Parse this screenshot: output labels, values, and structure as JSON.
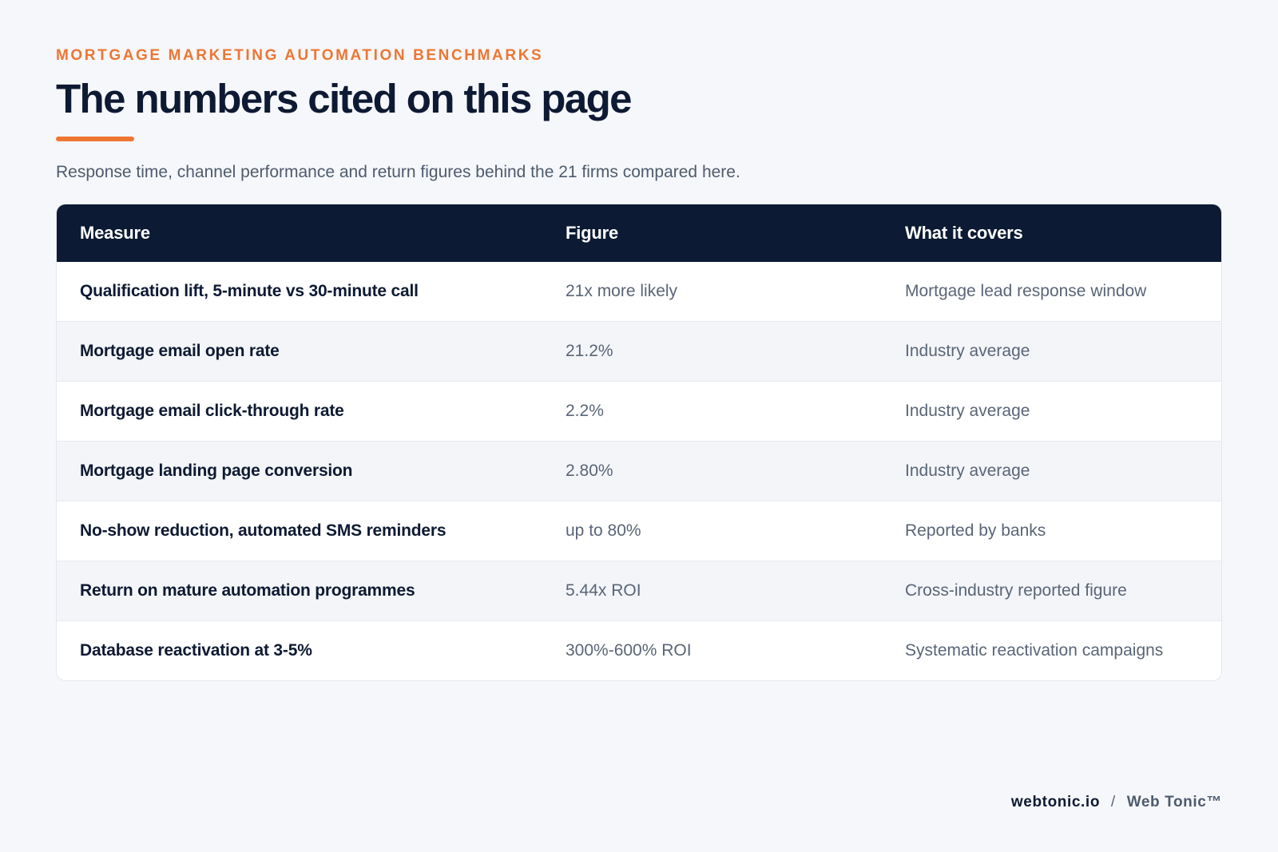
{
  "header": {
    "eyebrow": "MORTGAGE MARKETING AUTOMATION BENCHMARKS",
    "title": "The numbers cited on this page",
    "subtitle": "Response time, channel performance and return figures behind the 21 firms compared here."
  },
  "table": {
    "columns": [
      "Measure",
      "Figure",
      "What it covers"
    ],
    "rows": [
      [
        "Qualification lift, 5-minute vs 30-minute call",
        "21x more likely",
        "Mortgage lead response window"
      ],
      [
        "Mortgage email open rate",
        "21.2%",
        "Industry average"
      ],
      [
        "Mortgage email click-through rate",
        "2.2%",
        "Industry average"
      ],
      [
        "Mortgage landing page conversion",
        "2.80%",
        "Industry average"
      ],
      [
        "No-show reduction, automated SMS reminders",
        "up to 80%",
        "Reported by banks"
      ],
      [
        "Return on mature automation programmes",
        "5.44x ROI",
        "Cross-industry reported figure"
      ],
      [
        "Database reactivation at 3-5%",
        "300%-600% ROI",
        "Systematic reactivation campaigns"
      ]
    ]
  },
  "footer": {
    "domain": "webtonic.io",
    "separator": "/",
    "brand": "Web Tonic™"
  },
  "colors": {
    "accent": "#ee7633",
    "navy": "#0c1a33",
    "background": "#f5f7fa"
  }
}
